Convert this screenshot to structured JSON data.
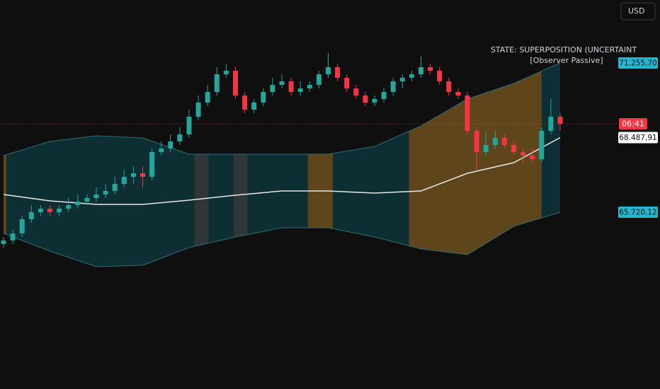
{
  "currency": "USD",
  "chart_data": {
    "type": "candlestick",
    "annotation": [
      "STATE: SUPERPOSITION (UNCERTAINT",
      "[Observer Passive]"
    ],
    "last_label": "06:41",
    "up_color": "#26a69a",
    "down_color": "#f23645",
    "ylim": [
      59164,
      73590
    ],
    "open": [
      64541,
      64672,
      64934,
      65459,
      65721,
      65852,
      65721,
      65852,
      65983,
      66115,
      66246,
      66377,
      66508,
      66770,
      67033,
      67164,
      67033,
      67951,
      68082,
      68344,
      68606,
      69262,
      69787,
      70180,
      70836,
      70967,
      70049,
      69525,
      69787,
      70180,
      70442,
      70573,
      70180,
      70311,
      70442,
      70836,
      71098,
      70705,
      70311,
      70049,
      69787,
      69918,
      70180,
      70573,
      70705,
      70836,
      71098,
      70967,
      70573,
      70180,
      70049,
      68738,
      67951,
      68213,
      68475,
      68213,
      67951,
      67819,
      67688,
      68738,
      69262
    ],
    "high": [
      64803,
      65065,
      65590,
      65983,
      65983,
      65983,
      65983,
      66246,
      66377,
      66377,
      66639,
      66770,
      67033,
      67295,
      67426,
      67426,
      68082,
      68344,
      68606,
      68869,
      69525,
      70049,
      70442,
      71098,
      71229,
      71098,
      70180,
      69918,
      70311,
      70705,
      70836,
      70705,
      70573,
      70573,
      70967,
      71623,
      71229,
      70836,
      70442,
      70180,
      70049,
      70311,
      70705,
      70836,
      70967,
      71492,
      71229,
      71098,
      70705,
      70311,
      70180,
      68869,
      68738,
      68738,
      68606,
      68344,
      68082,
      68082,
      68869,
      69918,
      69393
    ],
    "low": [
      64410,
      64541,
      64803,
      65328,
      65590,
      65590,
      65590,
      65721,
      65852,
      65983,
      66115,
      66246,
      66377,
      66639,
      66770,
      66639,
      66901,
      67819,
      67951,
      68213,
      68475,
      69131,
      69656,
      70049,
      70705,
      69918,
      69393,
      69393,
      69656,
      70049,
      70311,
      70049,
      70049,
      70180,
      70311,
      70705,
      70573,
      70180,
      69918,
      69656,
      69656,
      69787,
      70049,
      70311,
      70573,
      70705,
      70836,
      70442,
      70049,
      69918,
      68606,
      67295,
      67819,
      68082,
      68082,
      67819,
      67557,
      67557,
      67557,
      68606,
      68738
    ],
    "close": [
      64672,
      64934,
      65459,
      65721,
      65852,
      65721,
      65852,
      65983,
      66115,
      66246,
      66377,
      66508,
      66770,
      67033,
      67164,
      67033,
      67951,
      68082,
      68344,
      68606,
      69262,
      69787,
      70180,
      70836,
      70967,
      70049,
      69525,
      69787,
      70180,
      70442,
      70573,
      70180,
      70311,
      70442,
      70836,
      71098,
      70705,
      70311,
      70049,
      69787,
      69918,
      70180,
      70573,
      70705,
      70836,
      71098,
      70967,
      70573,
      70180,
      70049,
      68738,
      67951,
      68213,
      68475,
      68213,
      67951,
      67819,
      67688,
      68738,
      69262,
      69000
    ],
    "bands": {
      "index": [
        0,
        5,
        10,
        15,
        20,
        25,
        30,
        35,
        40,
        45,
        50,
        55,
        60
      ],
      "upper": [
        67819,
        68344,
        68554,
        68475,
        67872,
        67872,
        67872,
        67872,
        68160,
        68921,
        69918,
        70495,
        71255.7
      ],
      "middle": [
        66377,
        66141,
        66010,
        66010,
        66167,
        66351,
        66508,
        66508,
        66429,
        66508,
        67164,
        67557,
        68487.91
      ],
      "lower": [
        64934,
        64279,
        63701,
        63754,
        64410,
        64803,
        65144,
        65144,
        64803,
        64357,
        64147,
        65196,
        65720.12
      ],
      "value_labels": {
        "upper": "71.255,70",
        "middle": "68.487,91",
        "lower": "65.720,12"
      }
    },
    "regions": [
      {
        "start": -0.5,
        "end": 0.3,
        "color": "#7a4e14"
      },
      {
        "start": 20.6,
        "end": 22.1,
        "color": "#3a3a3a"
      },
      {
        "start": 24.8,
        "end": 26.3,
        "color": "#3a3a3a"
      },
      {
        "start": 32.8,
        "end": 35.5,
        "color": "#7a4e14"
      },
      {
        "start": 43.7,
        "end": 58,
        "color": "#7a4e14"
      }
    ]
  }
}
